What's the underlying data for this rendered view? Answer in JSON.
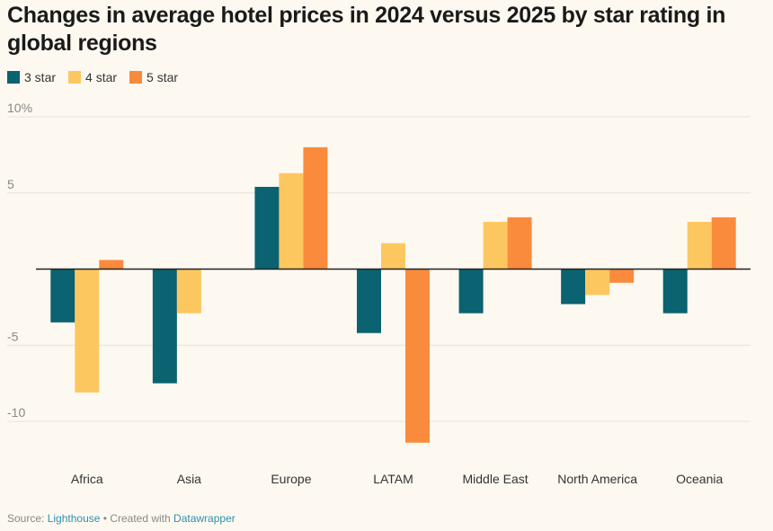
{
  "title": "Changes in average hotel prices in 2024 versus 2025 by star rating in global regions",
  "colors": {
    "series_3": "#0b6270",
    "series_4": "#fdc760",
    "series_5": "#fa8a3c",
    "grid": "#e6e2da",
    "axis_text": "#888888"
  },
  "footer": {
    "source_label": "Source:",
    "source_link": "Lighthouse",
    "separator": "•",
    "created_label": "Created with",
    "created_link": "Datawrapper"
  },
  "chart_data": {
    "type": "bar",
    "categories": [
      "Africa",
      "Asia",
      "Europe",
      "LATAM",
      "Middle East",
      "North America",
      "Oceania"
    ],
    "series": [
      {
        "name": "3 star",
        "values": [
          -3.5,
          -7.5,
          5.4,
          -4.2,
          -2.9,
          -2.3,
          -2.9
        ]
      },
      {
        "name": "4 star",
        "values": [
          -8.1,
          -2.9,
          6.3,
          1.7,
          3.1,
          -1.7,
          3.1
        ]
      },
      {
        "name": "5 star",
        "values": [
          0.6,
          null,
          8.0,
          -11.4,
          3.4,
          -0.9,
          3.4
        ]
      }
    ],
    "ylim": [
      -12,
      10
    ],
    "yticks": [
      10,
      5,
      0,
      -5,
      -10
    ],
    "ytick_labels": [
      "10%",
      "5",
      "",
      "-5",
      "-10"
    ],
    "grid": true,
    "legend_position": "top-left"
  }
}
